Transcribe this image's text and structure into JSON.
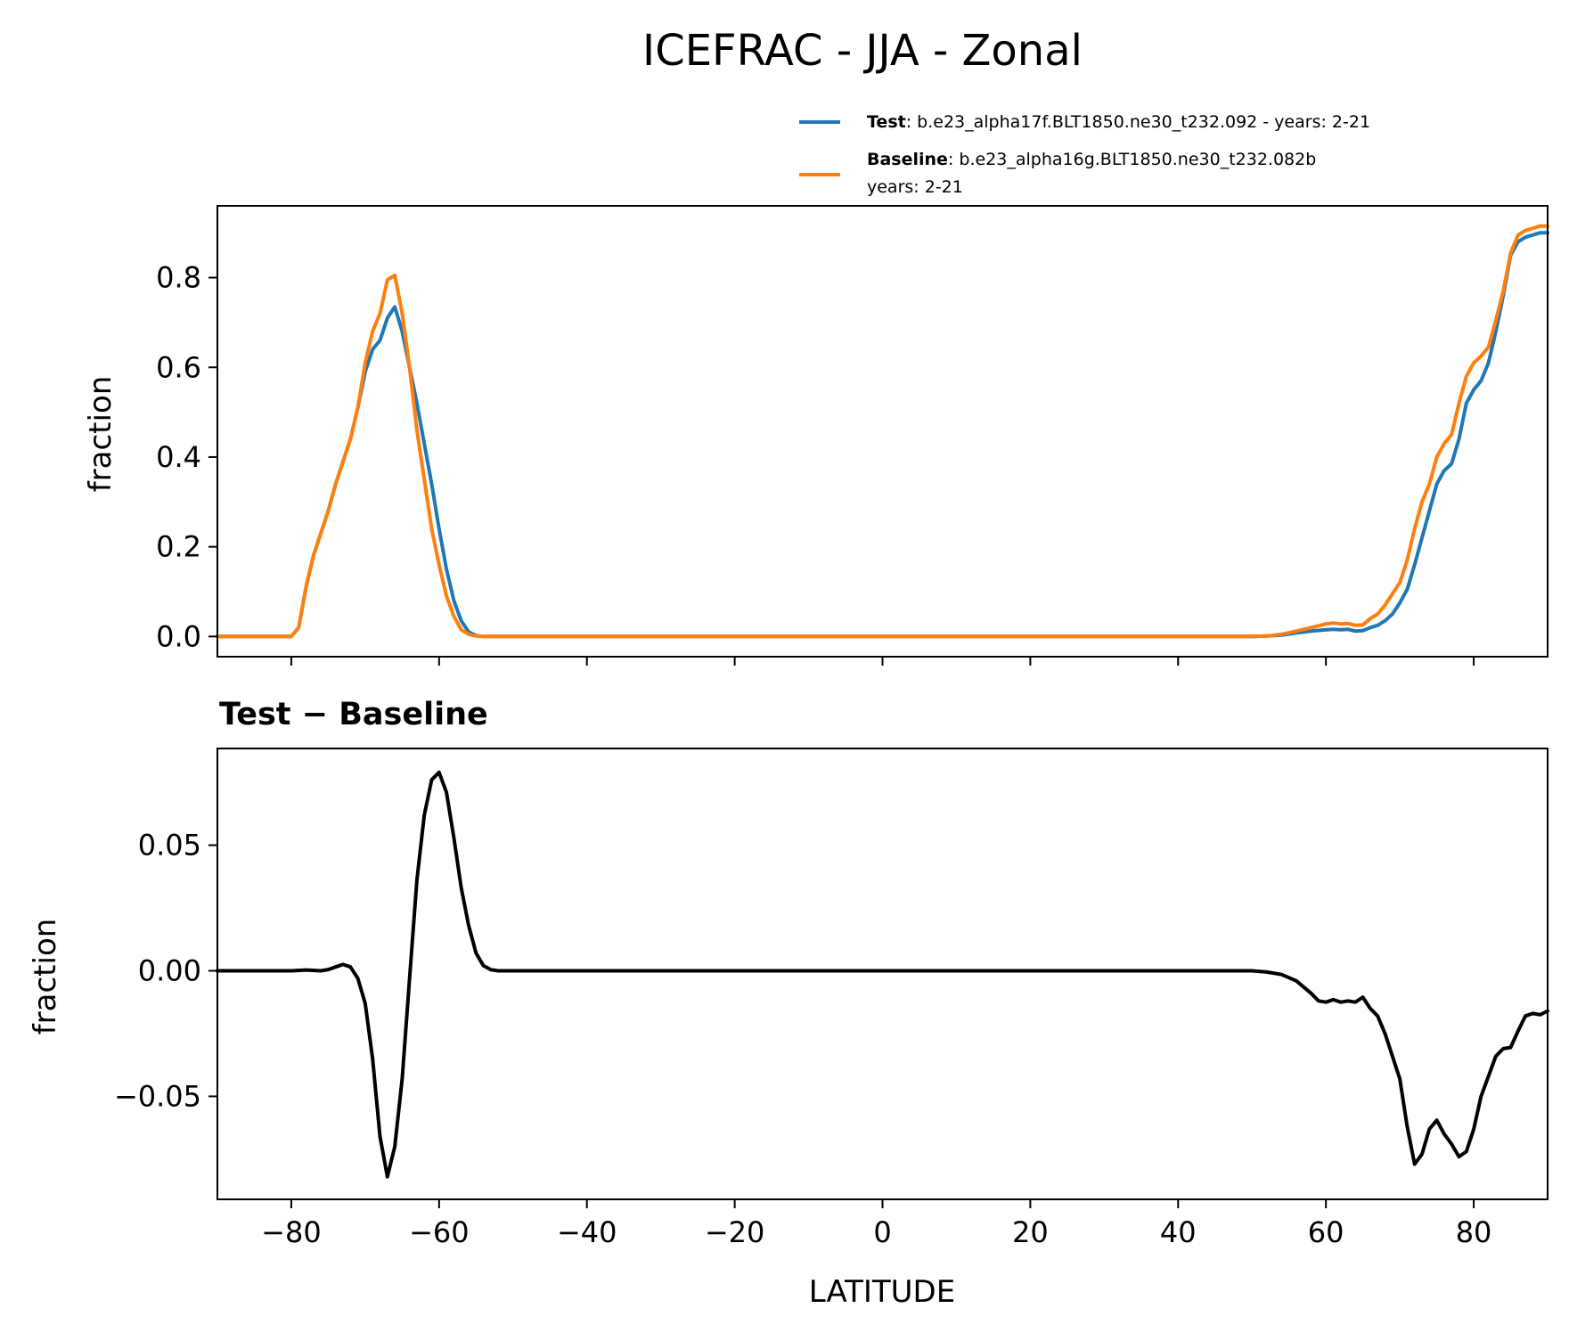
{
  "chart_data": [
    {
      "type": "line",
      "title": "ICEFRAC - JJA - Zonal",
      "xlabel": "",
      "ylabel": "fraction",
      "xlim": [
        -90,
        90
      ],
      "ylim": [
        -0.045,
        0.96
      ],
      "yticks": [
        0.0,
        0.2,
        0.4,
        0.6,
        0.8
      ],
      "ytick_labels": [
        "0.0",
        "0.2",
        "0.4",
        "0.6",
        "0.8"
      ],
      "xticks": [
        -80,
        -60,
        -40,
        -20,
        0,
        20,
        40,
        60,
        80
      ],
      "legend": {
        "position": "top-right",
        "entries": [
          {
            "name": "Test",
            "detail": ": b.e23_alpha17f.BLT1850.ne30_t232.092 - years: 2-21"
          },
          {
            "name": "Baseline",
            "detail": ": b.e23_alpha16g.BLT1850.ne30_t232.082b",
            "detail2": "years: 2-21"
          }
        ]
      },
      "series": [
        {
          "name": "Test",
          "color": "#1f77b4",
          "x": [
            -90,
            -80,
            -79,
            -78,
            -77,
            -76,
            -75,
            -74,
            -73,
            -72,
            -71,
            -70,
            -69,
            -68,
            -67,
            -66,
            -65,
            -64,
            -63,
            -62,
            -61,
            -60,
            -59,
            -58,
            -57,
            -56,
            -55,
            -54,
            -53,
            -52,
            -50,
            50,
            52,
            54,
            56,
            58,
            60,
            61,
            62,
            63,
            64,
            65,
            66,
            67,
            68,
            69,
            70,
            71,
            72,
            73,
            74,
            75,
            76,
            77,
            78,
            79,
            80,
            81,
            82,
            83,
            84,
            85,
            86,
            87,
            88,
            89,
            90
          ],
          "values": [
            0,
            0,
            0.02,
            0.11,
            0.18,
            0.23,
            0.28,
            0.34,
            0.39,
            0.44,
            0.51,
            0.59,
            0.64,
            0.66,
            0.71,
            0.735,
            0.68,
            0.6,
            0.52,
            0.43,
            0.34,
            0.24,
            0.15,
            0.08,
            0.035,
            0.01,
            0.002,
            0,
            0,
            0,
            0,
            0,
            0.001,
            0.003,
            0.008,
            0.012,
            0.015,
            0.016,
            0.015,
            0.016,
            0.012,
            0.013,
            0.02,
            0.025,
            0.035,
            0.05,
            0.075,
            0.105,
            0.16,
            0.22,
            0.28,
            0.34,
            0.37,
            0.385,
            0.44,
            0.52,
            0.55,
            0.57,
            0.61,
            0.68,
            0.76,
            0.85,
            0.88,
            0.89,
            0.895,
            0.9,
            0.9
          ]
        },
        {
          "name": "Baseline",
          "color": "#ff7f0e",
          "x": [
            -90,
            -80,
            -79,
            -78,
            -77,
            -76,
            -75,
            -74,
            -73,
            -72,
            -71,
            -70,
            -69,
            -68,
            -67,
            -66,
            -65,
            -64,
            -63,
            -62,
            -61,
            -60,
            -59,
            -58,
            -57,
            -56,
            -55,
            -54,
            -53,
            -52,
            -50,
            50,
            52,
            54,
            56,
            58,
            60,
            61,
            62,
            63,
            64,
            65,
            66,
            67,
            68,
            69,
            70,
            71,
            72,
            73,
            74,
            75,
            76,
            77,
            78,
            79,
            80,
            81,
            82,
            83,
            84,
            85,
            86,
            87,
            88,
            89,
            90
          ],
          "values": [
            0,
            0,
            0.02,
            0.11,
            0.18,
            0.23,
            0.28,
            0.34,
            0.39,
            0.44,
            0.51,
            0.61,
            0.68,
            0.72,
            0.795,
            0.805,
            0.72,
            0.6,
            0.46,
            0.35,
            0.24,
            0.16,
            0.09,
            0.045,
            0.015,
            0.005,
            0.001,
            0,
            0,
            0,
            0,
            0,
            0.001,
            0.005,
            0.012,
            0.02,
            0.028,
            0.03,
            0.028,
            0.029,
            0.025,
            0.026,
            0.04,
            0.05,
            0.07,
            0.095,
            0.12,
            0.17,
            0.24,
            0.3,
            0.34,
            0.4,
            0.43,
            0.45,
            0.52,
            0.58,
            0.61,
            0.625,
            0.645,
            0.705,
            0.77,
            0.855,
            0.895,
            0.905,
            0.91,
            0.915,
            0.915
          ]
        }
      ]
    },
    {
      "type": "line",
      "title": "Test − Baseline",
      "xlabel": "LATITUDE",
      "ylabel": "fraction",
      "xlim": [
        -90,
        90
      ],
      "ylim": [
        -0.091,
        0.0885
      ],
      "yticks": [
        -0.05,
        0.0,
        0.05
      ],
      "ytick_labels": [
        "−0.05",
        "0.00",
        "0.05"
      ],
      "xticks": [
        -80,
        -60,
        -40,
        -20,
        0,
        20,
        40,
        60,
        80
      ],
      "xtick_labels": [
        "−80",
        "−60",
        "−40",
        "−20",
        "0",
        "20",
        "40",
        "60",
        "80"
      ],
      "series": [
        {
          "name": "Test − Baseline",
          "color": "#000000",
          "x": [
            -90,
            -80,
            -78,
            -76,
            -75,
            -74,
            -73,
            -72,
            -71,
            -70,
            -69,
            -68,
            -67,
            -66,
            -65,
            -64,
            -63,
            -62,
            -61,
            -60,
            -59,
            -58,
            -57,
            -56,
            -55,
            -54,
            -53,
            -52,
            -50,
            50,
            52,
            54,
            56,
            57,
            58,
            59,
            60,
            61,
            62,
            63,
            64,
            65,
            66,
            67,
            68,
            69,
            70,
            71,
            72,
            73,
            74,
            75,
            76,
            77,
            78,
            79,
            80,
            81,
            82,
            83,
            84,
            85,
            86,
            87,
            88,
            89,
            90
          ],
          "values": [
            0,
            0,
            0.0003,
            0,
            0.0005,
            0.0015,
            0.0025,
            0.0015,
            -0.003,
            -0.013,
            -0.035,
            -0.066,
            -0.082,
            -0.07,
            -0.043,
            -0.003,
            0.036,
            0.062,
            0.076,
            0.079,
            0.071,
            0.053,
            0.033,
            0.018,
            0.007,
            0.002,
            0.0004,
            0,
            0,
            0,
            -0.0005,
            -0.0015,
            -0.004,
            -0.0065,
            -0.009,
            -0.012,
            -0.0125,
            -0.0115,
            -0.0125,
            -0.012,
            -0.0125,
            -0.0105,
            -0.015,
            -0.018,
            -0.025,
            -0.034,
            -0.043,
            -0.062,
            -0.077,
            -0.073,
            -0.063,
            -0.0595,
            -0.065,
            -0.069,
            -0.074,
            -0.072,
            -0.063,
            -0.05,
            -0.042,
            -0.034,
            -0.031,
            -0.0305,
            -0.024,
            -0.018,
            -0.017,
            -0.0175,
            -0.016
          ]
        }
      ]
    }
  ]
}
